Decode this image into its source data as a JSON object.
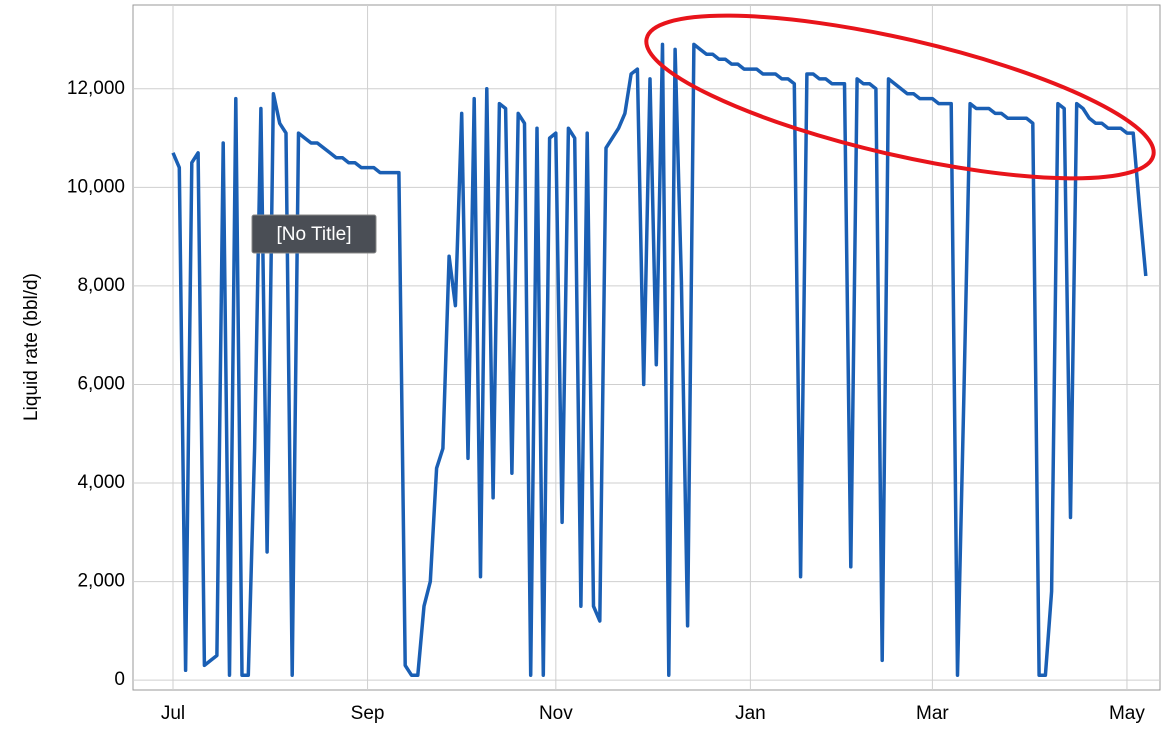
{
  "chart_data": {
    "type": "line",
    "ylabel": "Liquid rate (bbl/d)",
    "tooltip": "[No Title]",
    "color": "#1a5fb4",
    "grid": true,
    "ylim": [
      -200,
      13700
    ],
    "yticks": [
      0,
      {
        "value": 2000,
        "label": "2,000"
      },
      {
        "value": 4000,
        "label": "4,000"
      },
      {
        "value": 6000,
        "label": "6,000"
      },
      {
        "value": 8000,
        "label": "8,000"
      },
      {
        "value": 10000,
        "label": "10,000"
      },
      {
        "value": 12000,
        "label": "12,000"
      }
    ],
    "categories": [
      "Jul",
      null,
      null,
      null,
      null,
      null,
      null,
      null,
      null,
      null,
      null,
      null,
      null,
      null,
      null,
      null,
      null,
      null,
      null,
      null,
      null,
      null,
      null,
      null,
      null,
      null,
      null,
      null,
      null,
      null,
      null,
      "Sep",
      null,
      null,
      null,
      null,
      null,
      null,
      null,
      null,
      null,
      null,
      null,
      null,
      null,
      null,
      null,
      null,
      null,
      null,
      null,
      null,
      null,
      null,
      null,
      null,
      null,
      null,
      null,
      null,
      null,
      "Nov",
      null,
      null,
      null,
      null,
      null,
      null,
      null,
      null,
      null,
      null,
      null,
      null,
      null,
      null,
      null,
      null,
      null,
      null,
      null,
      null,
      null,
      null,
      null,
      null,
      null,
      null,
      null,
      null,
      null,
      null,
      "Jan",
      null,
      null,
      null,
      null,
      null,
      null,
      null,
      null,
      null,
      null,
      null,
      null,
      null,
      null,
      null,
      null,
      null,
      null,
      null,
      null,
      null,
      null,
      null,
      null,
      null,
      null,
      null,
      null,
      "Mar",
      null,
      null,
      null,
      null,
      null,
      null,
      null,
      null,
      null,
      null,
      null,
      null,
      null,
      null,
      null,
      null,
      null,
      null,
      null,
      null,
      null,
      null,
      null,
      null,
      null,
      null,
      null,
      null,
      null,
      null,
      "May",
      null,
      null,
      null
    ],
    "values": [
      10700,
      10400,
      200,
      10500,
      10700,
      300,
      400,
      500,
      10900,
      100,
      11800,
      100,
      100,
      4700,
      11600,
      2600,
      11900,
      11300,
      11100,
      100,
      11100,
      11000,
      10900,
      10900,
      10800,
      10700,
      10600,
      10600,
      10500,
      10500,
      10400,
      10400,
      10400,
      10300,
      10300,
      10300,
      10300,
      300,
      100,
      100,
      1500,
      2000,
      4300,
      4700,
      8600,
      7600,
      11500,
      4500,
      11800,
      2100,
      12000,
      3700,
      11700,
      11600,
      4200,
      11500,
      11300,
      100,
      11200,
      100,
      11000,
      11100,
      3200,
      11200,
      11000,
      1500,
      11100,
      1500,
      1200,
      10800,
      11000,
      11200,
      11500,
      12300,
      12400,
      6000,
      12200,
      6400,
      12900,
      100,
      12800,
      8100,
      1100,
      12900,
      12800,
      12700,
      12700,
      12600,
      12600,
      12500,
      12500,
      12400,
      12400,
      12400,
      12300,
      12300,
      12300,
      12200,
      12200,
      12100,
      2100,
      12300,
      12300,
      12200,
      12200,
      12100,
      12100,
      12100,
      2300,
      12200,
      12100,
      12100,
      12000,
      400,
      12200,
      12100,
      12000,
      11900,
      11900,
      11800,
      11800,
      11800,
      11700,
      11700,
      11700,
      100,
      5700,
      11700,
      11600,
      11600,
      11600,
      11500,
      11500,
      11400,
      11400,
      11400,
      11400,
      11300,
      100,
      100,
      1800,
      11700,
      11600,
      3300,
      11700,
      11600,
      11400,
      11300,
      11300,
      11200,
      11200,
      11200,
      11100,
      11100,
      9600,
      8200
    ]
  }
}
